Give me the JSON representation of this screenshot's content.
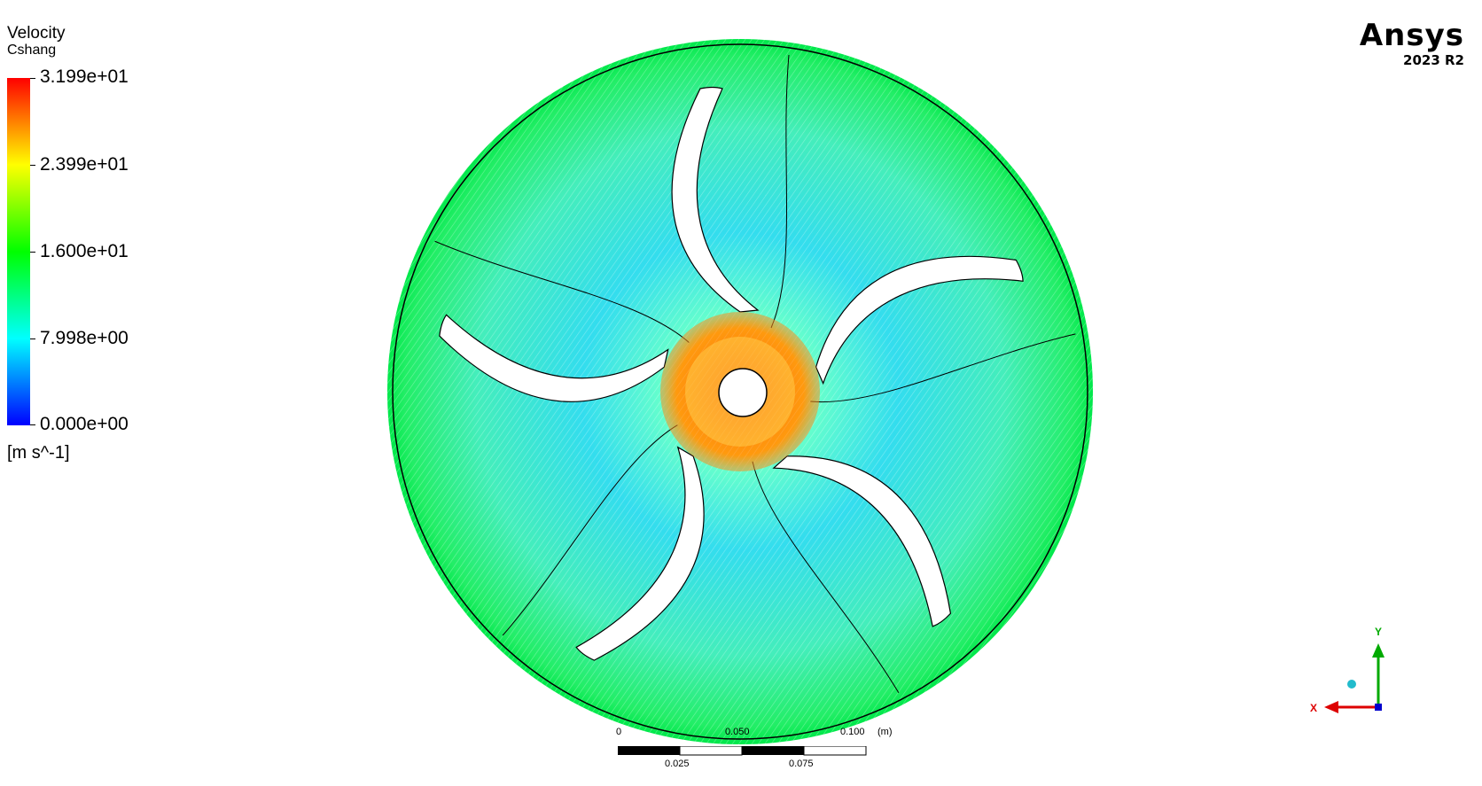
{
  "legend": {
    "title": "Velocity",
    "subtitle": "Cshang",
    "ticks": [
      "3.199e+01",
      "2.399e+01",
      "1.600e+01",
      "7.998e+00",
      "0.000e+00"
    ],
    "units": "[m s^-1]",
    "colormap": [
      "#ff0000",
      "#ffff00",
      "#00ff00",
      "#00ffff",
      "#0000ff"
    ]
  },
  "logo": {
    "name": "Ansys",
    "version": "2023 R2"
  },
  "scalebar": {
    "top_labels": [
      "0",
      "0.050",
      "0.100"
    ],
    "unit": "(m)",
    "bottom_labels": [
      "0.025",
      "0.075"
    ]
  },
  "triad": {
    "y_label": "Y",
    "x_label": "X"
  },
  "impeller": {
    "blade_count": 5
  }
}
